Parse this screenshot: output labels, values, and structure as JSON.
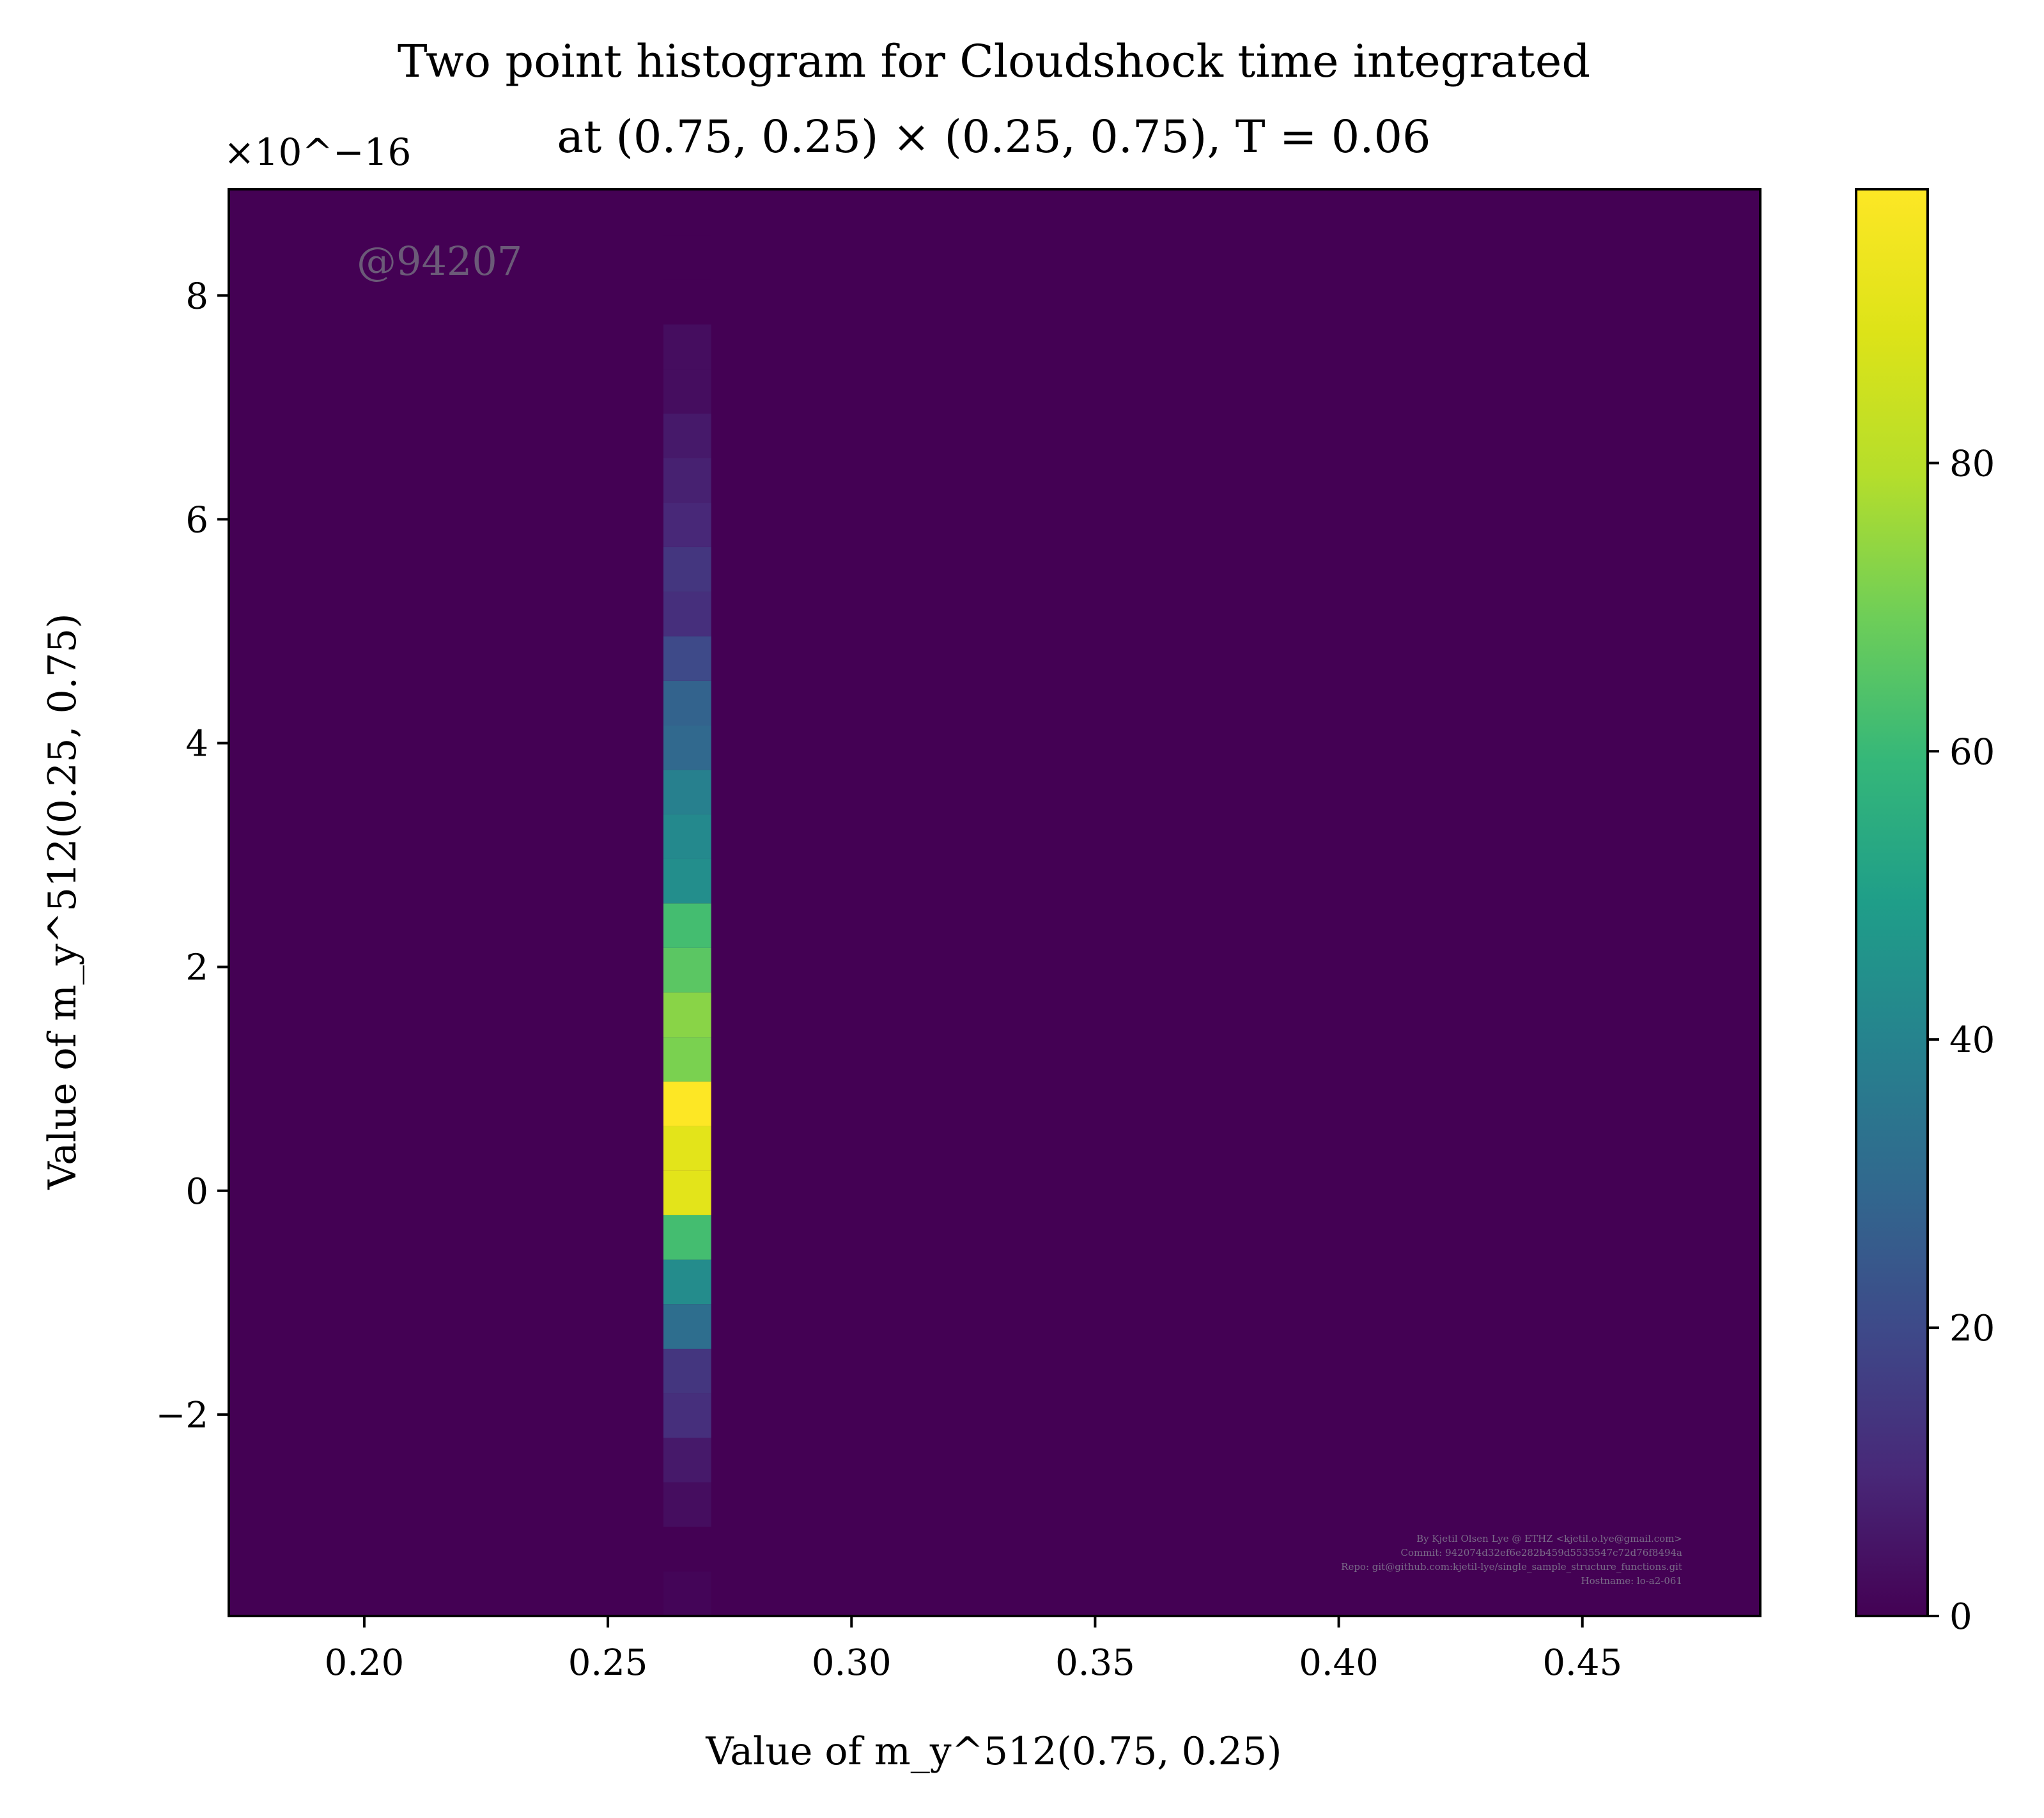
{
  "chart_data": {
    "type": "heatmap",
    "title_line1": "Two point histogram for Cloudshock time integrated",
    "title_line2": "at (0.75, 0.25) × (0.25, 0.75), T = 0.06",
    "xlabel": "Value of m_y^512(0.75, 0.25)",
    "ylabel": "Value of m_y^512(0.25, 0.75)",
    "y_multiplier": "×10^−16",
    "xlim": [
      0.1722,
      0.4865
    ],
    "ylim": [
      -3.8,
      8.95
    ],
    "x_ticks": [
      0.2,
      0.25,
      0.3,
      0.35,
      0.4,
      0.45
    ],
    "x_tick_labels": [
      "0.20",
      "0.25",
      "0.30",
      "0.35",
      "0.40",
      "0.45"
    ],
    "y_ticks": [
      -2,
      0,
      2,
      4,
      6,
      8
    ],
    "y_tick_labels": [
      "−2",
      "0",
      "2",
      "4",
      "6",
      "8"
    ],
    "colormap": "viridis",
    "colorbar_range": [
      0,
      99
    ],
    "colorbar_ticks": [
      0,
      20,
      40,
      60,
      80
    ],
    "colorbar_tick_labels": [
      "0",
      "20",
      "40",
      "60",
      "80"
    ],
    "bin_column_x": [
      0.2614,
      0.2712
    ],
    "bin_height": 0.398,
    "bins": [
      {
        "y0": -3.8,
        "count": 1
      },
      {
        "y0": -3.402,
        "count": 0
      },
      {
        "y0": -3.004,
        "count": 3
      },
      {
        "y0": -2.606,
        "count": 6
      },
      {
        "y0": -2.208,
        "count": 12
      },
      {
        "y0": -1.81,
        "count": 14
      },
      {
        "y0": -1.412,
        "count": 32
      },
      {
        "y0": -1.014,
        "count": 43
      },
      {
        "y0": -0.616,
        "count": 62
      },
      {
        "y0": -0.218,
        "count": 91
      },
      {
        "y0": 0.18,
        "count": 91
      },
      {
        "y0": 0.578,
        "count": 99
      },
      {
        "y0": 0.976,
        "count": 71
      },
      {
        "y0": 1.374,
        "count": 73
      },
      {
        "y0": 1.772,
        "count": 66
      },
      {
        "y0": 2.17,
        "count": 62
      },
      {
        "y0": 2.568,
        "count": 44
      },
      {
        "y0": 2.966,
        "count": 42
      },
      {
        "y0": 3.364,
        "count": 39
      },
      {
        "y0": 3.762,
        "count": 30
      },
      {
        "y0": 4.16,
        "count": 28
      },
      {
        "y0": 4.558,
        "count": 20
      },
      {
        "y0": 4.956,
        "count": 12
      },
      {
        "y0": 5.354,
        "count": 14
      },
      {
        "y0": 5.752,
        "count": 10
      },
      {
        "y0": 6.15,
        "count": 8
      },
      {
        "y0": 6.548,
        "count": 6
      },
      {
        "y0": 6.946,
        "count": 3
      },
      {
        "y0": 7.344,
        "count": 3
      },
      {
        "y0": 7.742,
        "count": 0
      },
      {
        "y0": 8.14,
        "count": 0
      }
    ]
  },
  "watermark": "@94207",
  "credits": [
    "By Kjetil Olsen Lye @ ETHZ <kjetil.o.lye@gmail.com>",
    "Commit: 942074d32ef6e282b459d5535547c72d76f8494a",
    "Repo: git@github.com:kjetil-lye/single_sample_structure_functions.git",
    "Hostname: lo-a2-061"
  ]
}
